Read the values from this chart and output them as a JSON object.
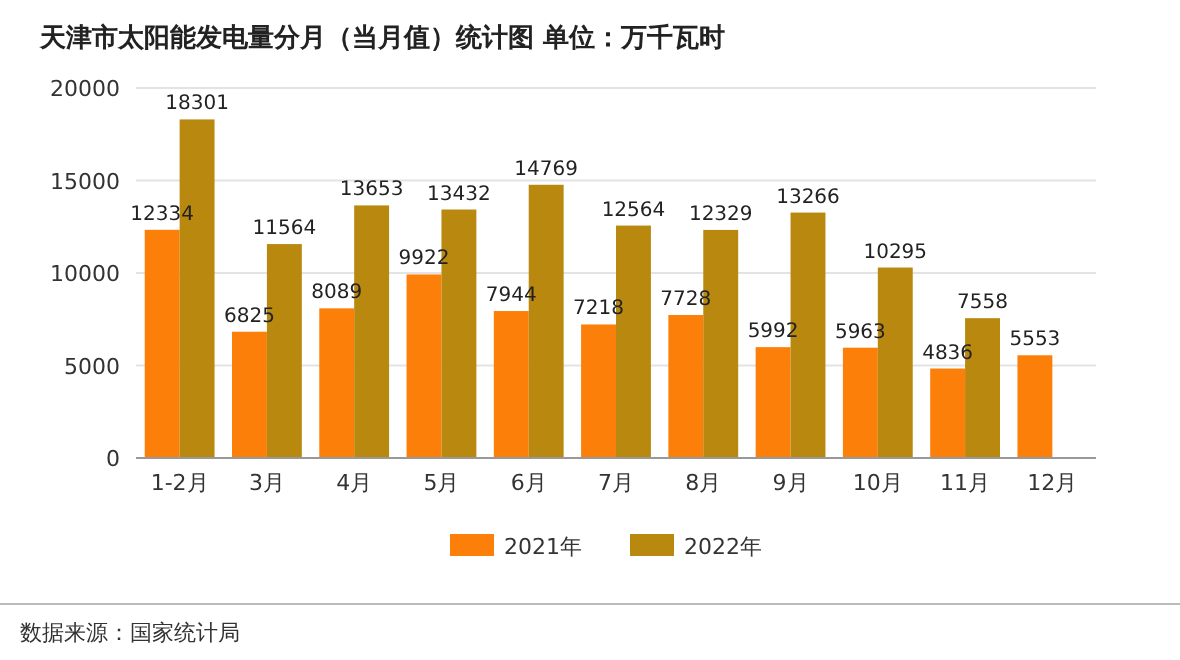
{
  "chart_data": {
    "type": "bar",
    "title": "天津市太阳能发电量分月（当月值）统计图 单位：万千瓦时",
    "categories": [
      "1-2月",
      "3月",
      "4月",
      "5月",
      "6月",
      "7月",
      "8月",
      "9月",
      "10月",
      "11月",
      "12月"
    ],
    "series": [
      {
        "name": "2021年",
        "color": "#fc7f0a",
        "values": [
          12334,
          6825,
          8089,
          9922,
          7944,
          7218,
          7728,
          5992,
          5963,
          4836,
          5553
        ]
      },
      {
        "name": "2022年",
        "color": "#b8880f",
        "values": [
          18301,
          11564,
          13653,
          13432,
          14769,
          12564,
          12329,
          13266,
          10295,
          7558,
          null
        ]
      }
    ],
    "ylim": [
      0,
      20000
    ],
    "yticks": [
      0,
      5000,
      10000,
      15000,
      20000
    ],
    "grid": "y",
    "legend": "bottom",
    "data_labels": true,
    "annotations": [
      "数据来源：国家统计局"
    ]
  }
}
